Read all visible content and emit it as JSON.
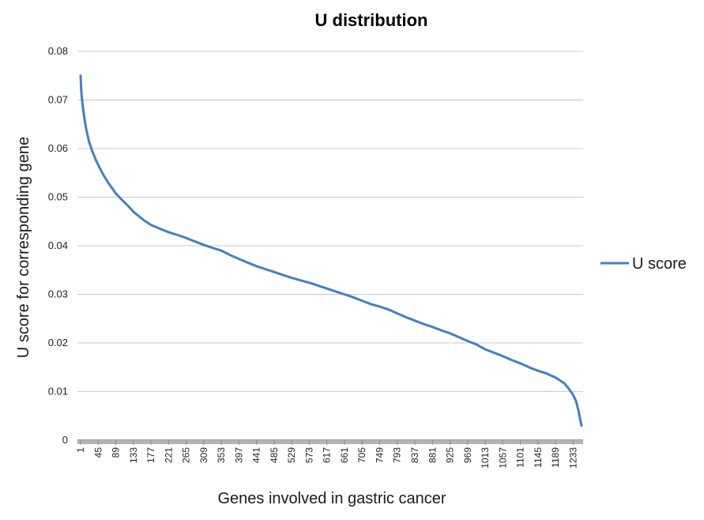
{
  "chart_data": {
    "type": "line",
    "title": "U distribution",
    "xlabel": "Genes involved in gastric cancer",
    "ylabel": "U score for corresponding  gene",
    "ylim": [
      0,
      0.08
    ],
    "yticks": [
      "0",
      "0.01",
      "0.02",
      "0.03",
      "0.04",
      "0.05",
      "0.06",
      "0.07",
      "0.08"
    ],
    "xlim": [
      1,
      1254
    ],
    "xticks": [
      "1",
      "45",
      "89",
      "133",
      "177",
      "221",
      "265",
      "309",
      "353",
      "397",
      "441",
      "485",
      "529",
      "573",
      "617",
      "661",
      "705",
      "749",
      "793",
      "837",
      "881",
      "925",
      "969",
      "1013",
      "1057",
      "1101",
      "1145",
      "1189",
      "1233"
    ],
    "grid": true,
    "legend": "right",
    "color": "#4a7ebb",
    "series": [
      {
        "name": "U score",
        "x": [
          1,
          3,
          6,
          10,
          15,
          22,
          30,
          40,
          50,
          60,
          70,
          80,
          89,
          100,
          120,
          133,
          160,
          177,
          200,
          221,
          245,
          265,
          290,
          309,
          330,
          353,
          375,
          397,
          420,
          441,
          463,
          485,
          507,
          529,
          551,
          573,
          595,
          617,
          639,
          661,
          683,
          705,
          727,
          749,
          771,
          793,
          815,
          837,
          859,
          881,
          903,
          925,
          947,
          969,
          991,
          1013,
          1035,
          1057,
          1079,
          1101,
          1123,
          1145,
          1167,
          1189,
          1200,
          1211,
          1222,
          1233,
          1240,
          1246,
          1250,
          1254
        ],
        "values": [
          0.075,
          0.0715,
          0.069,
          0.0665,
          0.064,
          0.0615,
          0.0595,
          0.0575,
          0.0558,
          0.0543,
          0.053,
          0.0518,
          0.0508,
          0.0498,
          0.0482,
          0.047,
          0.0452,
          0.0443,
          0.0435,
          0.0428,
          0.0422,
          0.0416,
          0.0408,
          0.0402,
          0.0396,
          0.039,
          0.0381,
          0.0373,
          0.0365,
          0.0358,
          0.0352,
          0.0346,
          0.034,
          0.0334,
          0.0329,
          0.0324,
          0.0318,
          0.0312,
          0.0306,
          0.03,
          0.0294,
          0.0287,
          0.028,
          0.0275,
          0.0269,
          0.0261,
          0.0253,
          0.0246,
          0.0239,
          0.0233,
          0.0226,
          0.022,
          0.0212,
          0.0204,
          0.0197,
          0.0187,
          0.018,
          0.0173,
          0.0165,
          0.0158,
          0.015,
          0.0143,
          0.0137,
          0.0129,
          0.0123,
          0.0117,
          0.0106,
          0.0093,
          0.0081,
          0.0062,
          0.0045,
          0.003
        ]
      }
    ]
  }
}
